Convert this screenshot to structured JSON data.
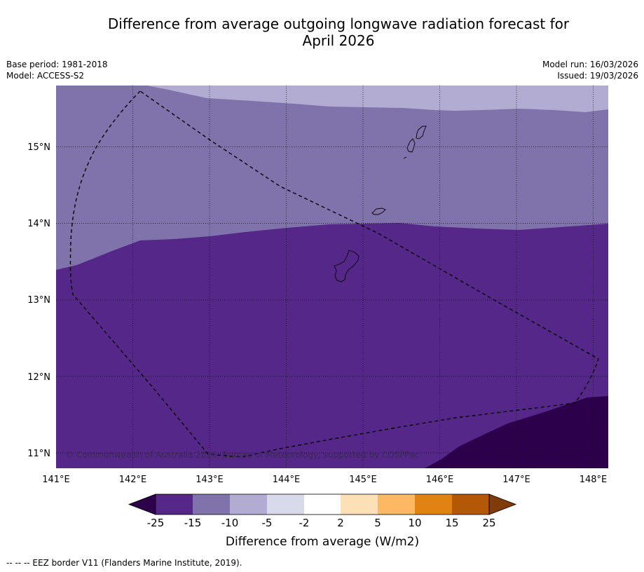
{
  "title": {
    "line1": "Difference from average outgoing longwave radiation forecast for",
    "line2": "April 2026"
  },
  "meta": {
    "base_period": "Base period: 1981-2018",
    "model": "Model: ACCESS-S2",
    "model_run": "Model run: 16/03/2026",
    "issued": "Issued: 19/03/2026"
  },
  "map": {
    "lon_labels": [
      "141°E",
      "142°E",
      "143°E",
      "144°E",
      "145°E",
      "146°E",
      "147°E",
      "148°E"
    ],
    "lat_labels": [
      "15°N",
      "14°N",
      "13°N",
      "12°N",
      "11°N"
    ],
    "copyright": "© Commonwealth of Australia 2026, Bureau of Meteorology, supported by COSPPac"
  },
  "legend": {
    "title": "Difference from average (W/m2)",
    "tick_labels": [
      "-25",
      "-15",
      "-10",
      "-5",
      "-2",
      "2",
      "5",
      "10",
      "15",
      "25"
    ],
    "colors": [
      "#2d004b",
      "#542788",
      "#8073ac",
      "#b2abd2",
      "#d8daeb",
      "#ffffff",
      "#fee0b6",
      "#fdb863",
      "#e08214",
      "#b35806",
      "#7f3b08"
    ]
  },
  "footer": "--  --  -- EEZ border V11 (Flanders Marine Institute, 2019)."
}
